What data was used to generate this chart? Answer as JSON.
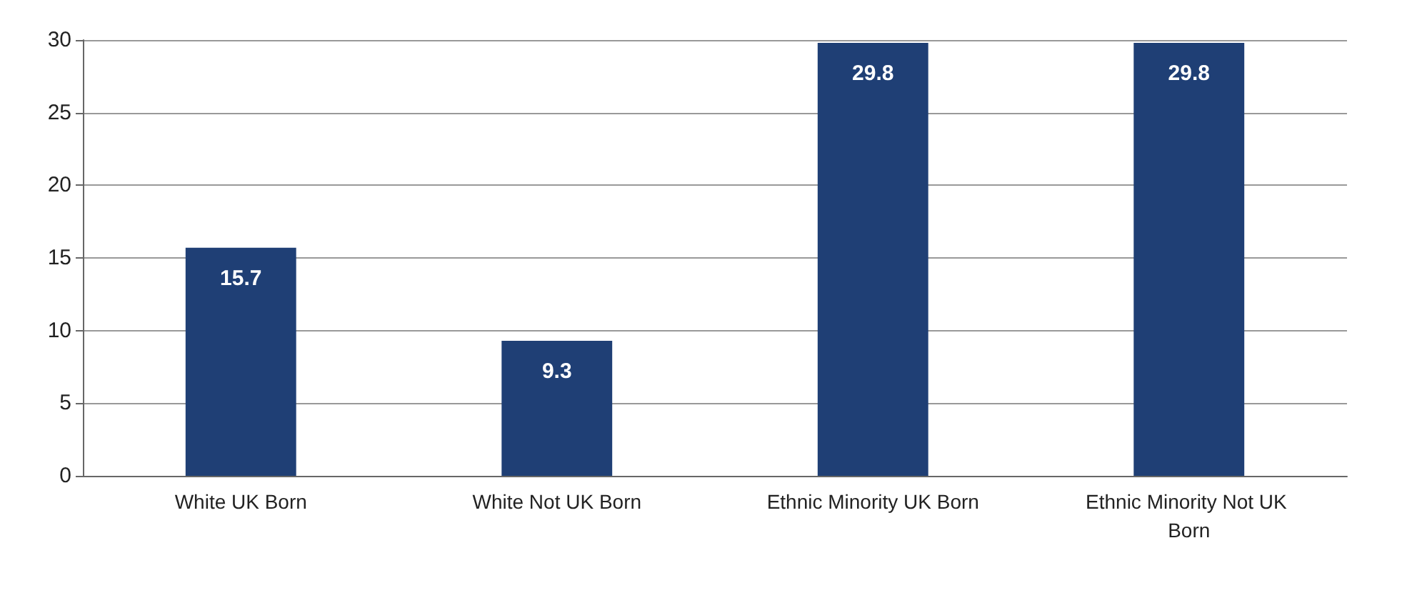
{
  "chart_data": {
    "type": "bar",
    "categories": [
      "White UK Born",
      "White Not UK Born",
      "Ethnic Minority UK Born",
      "Ethnic Minority Not UK Born"
    ],
    "values": [
      15.7,
      9.3,
      29.8,
      29.8
    ],
    "color": "#1f3f75",
    "ylim": [
      0,
      30
    ],
    "yticks": [
      0,
      5,
      10,
      15,
      20,
      25,
      30
    ],
    "grid": true,
    "data_labels": true
  }
}
